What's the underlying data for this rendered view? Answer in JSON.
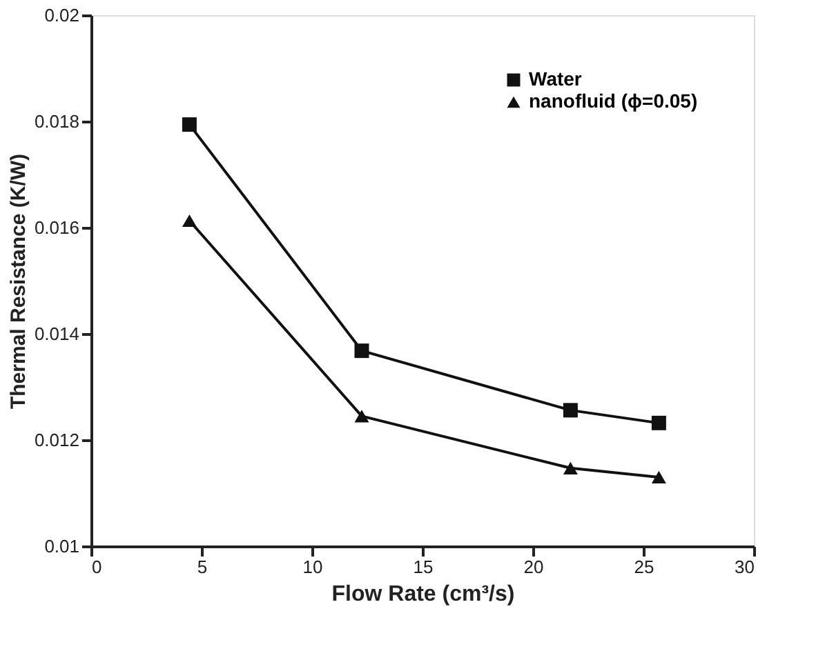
{
  "chart_data": {
    "type": "line",
    "xlabel": "Flow Rate (cm³/s)",
    "ylabel": "Thermal Resistance (K/W)",
    "x": [
      4.45,
      12.25,
      21.7,
      25.7
    ],
    "series": [
      {
        "name": "Water",
        "color": "#111111",
        "marker": "square",
        "values": [
          0.01794,
          0.01368,
          0.01256,
          0.01232
        ]
      },
      {
        "name": "nanofluid (ϕ=0.05)",
        "color": "#111111",
        "marker": "triangle",
        "values": [
          0.01613,
          0.01245,
          0.01147,
          0.0113
        ]
      }
    ],
    "xlim": [
      0,
      30
    ],
    "xticks": [
      0,
      5,
      10,
      15,
      20,
      25,
      30
    ],
    "ylim": [
      0.01,
      0.02
    ],
    "yticks": [
      0.01,
      0.012,
      0.014,
      0.016,
      0.018,
      0.02
    ],
    "grid": false,
    "legend": "top right",
    "line_style": "solid"
  }
}
